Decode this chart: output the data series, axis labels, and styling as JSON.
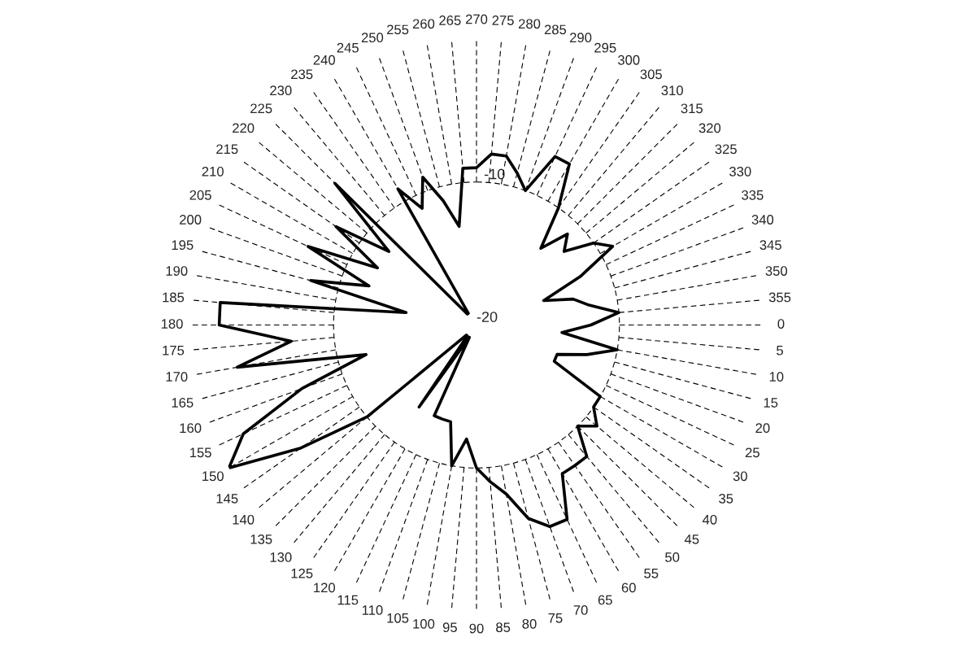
{
  "chart_data": {
    "type": "radar",
    "categories": [
      "270",
      "275",
      "280",
      "285",
      "290",
      "295",
      "300",
      "305",
      "310",
      "315",
      "320",
      "325",
      "330",
      "335",
      "340",
      "345",
      "350",
      "355",
      "0",
      "5",
      "10",
      "15",
      "20",
      "25",
      "30",
      "35",
      "40",
      "45",
      "50",
      "55",
      "60",
      "65",
      "70",
      "75",
      "80",
      "85",
      "90",
      "95",
      "100",
      "105",
      "110",
      "115",
      "120",
      "125",
      "130",
      "135",
      "140",
      "145",
      "150",
      "155",
      "160",
      "165",
      "170",
      "175",
      "180",
      "185",
      "190",
      "195",
      "200",
      "205",
      "210",
      "215",
      "220",
      "225",
      "230",
      "235",
      "240",
      "245",
      "250",
      "255",
      "260",
      "265"
    ],
    "series": [
      {
        "color": "#000000",
        "values": [
          -9,
          -8,
          -8,
          -9,
          -10,
          -7,
          -7,
          -10,
          -13,
          -11,
          -12,
          -10,
          -9,
          -12,
          -15,
          -13,
          -12,
          -10,
          -12,
          -14,
          -10,
          -12,
          -14,
          -14,
          -10,
          -10,
          -9,
          -10,
          -8,
          -8,
          -8,
          -5,
          -5,
          -6,
          -8,
          -9,
          -10,
          -12,
          -10,
          -13,
          -13,
          -13,
          -19,
          -13,
          -19,
          -19,
          -10,
          -5,
          0,
          -2,
          -7,
          -12,
          -3,
          -7,
          -2,
          -2,
          -15,
          -8,
          -12,
          -7,
          -12,
          -8,
          -12,
          -6,
          -19,
          -19,
          -9,
          -11,
          -9,
          -11,
          -13,
          -9
        ]
      }
    ],
    "ylim": [
      -20,
      0
    ],
    "yticks": [
      -20,
      -10
    ],
    "grid": true,
    "line_style": "solid"
  }
}
